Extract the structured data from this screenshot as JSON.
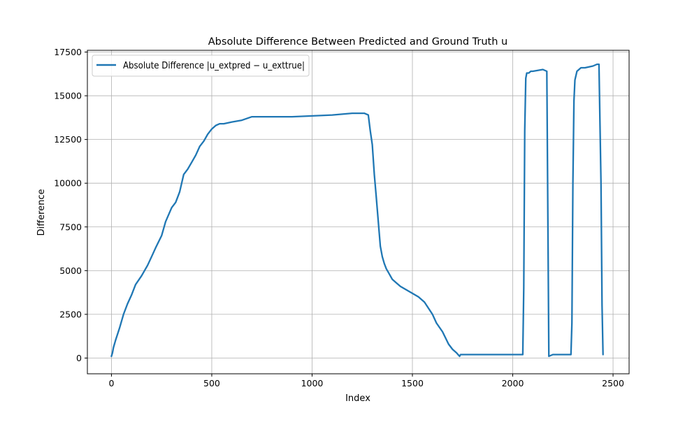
{
  "chart_data": {
    "type": "line",
    "title": "Absolute Difference Between Predicted and Ground Truth u",
    "xlabel": "Index",
    "ylabel": "Difference",
    "xlim": [
      -120,
      2580
    ],
    "ylim": [
      -900,
      17600
    ],
    "x_ticks": [
      0,
      500,
      1000,
      1500,
      2000,
      2500
    ],
    "y_ticks": [
      0,
      2500,
      5000,
      7500,
      10000,
      12500,
      15000,
      17500
    ],
    "grid": true,
    "legend": {
      "position": "upper-left",
      "label": "Absolute Difference |u_extpred − u_exttrue|"
    },
    "series": [
      {
        "name": "Absolute Difference |u_extpred − u_exttrue|",
        "color": "#1f77b4",
        "x": [
          0,
          5,
          10,
          20,
          40,
          60,
          80,
          100,
          120,
          150,
          180,
          200,
          220,
          250,
          270,
          300,
          320,
          340,
          360,
          380,
          400,
          420,
          440,
          460,
          480,
          500,
          520,
          540,
          560,
          600,
          650,
          700,
          800,
          900,
          1000,
          1100,
          1200,
          1240,
          1260,
          1280,
          1290,
          1300,
          1310,
          1320,
          1330,
          1340,
          1350,
          1360,
          1370,
          1380,
          1400,
          1420,
          1440,
          1470,
          1500,
          1530,
          1560,
          1600,
          1620,
          1650,
          1680,
          1700,
          1720,
          1735,
          1740,
          1800,
          1900,
          2000,
          2050,
          2055,
          2060,
          2065,
          2070,
          2080,
          2090,
          2100,
          2150,
          2170,
          2175,
          2180,
          2200,
          2250,
          2290,
          2295,
          2300,
          2305,
          2310,
          2320,
          2340,
          2360,
          2400,
          2420,
          2430,
          2440,
          2445,
          2450
        ],
        "y": [
          100,
          300,
          600,
          1000,
          1700,
          2500,
          3100,
          3600,
          4200,
          4700,
          5300,
          5800,
          6300,
          7000,
          7800,
          8600,
          8900,
          9500,
          10500,
          10800,
          11200,
          11600,
          12100,
          12400,
          12800,
          13100,
          13300,
          13400,
          13400,
          13500,
          13600,
          13800,
          13800,
          13800,
          13850,
          13900,
          14000,
          14000,
          14000,
          13900,
          13000,
          12200,
          10500,
          9200,
          7800,
          6400,
          5800,
          5400,
          5100,
          4900,
          4500,
          4300,
          4100,
          3900,
          3700,
          3500,
          3200,
          2500,
          2000,
          1500,
          800,
          500,
          300,
          100,
          200,
          200,
          200,
          200,
          200,
          4000,
          13000,
          16000,
          16300,
          16300,
          16400,
          16400,
          16500,
          16400,
          8000,
          100,
          200,
          200,
          200,
          2000,
          10000,
          14700,
          15900,
          16400,
          16600,
          16600,
          16700,
          16800,
          16800,
          10000,
          3000,
          200
        ]
      }
    ]
  }
}
